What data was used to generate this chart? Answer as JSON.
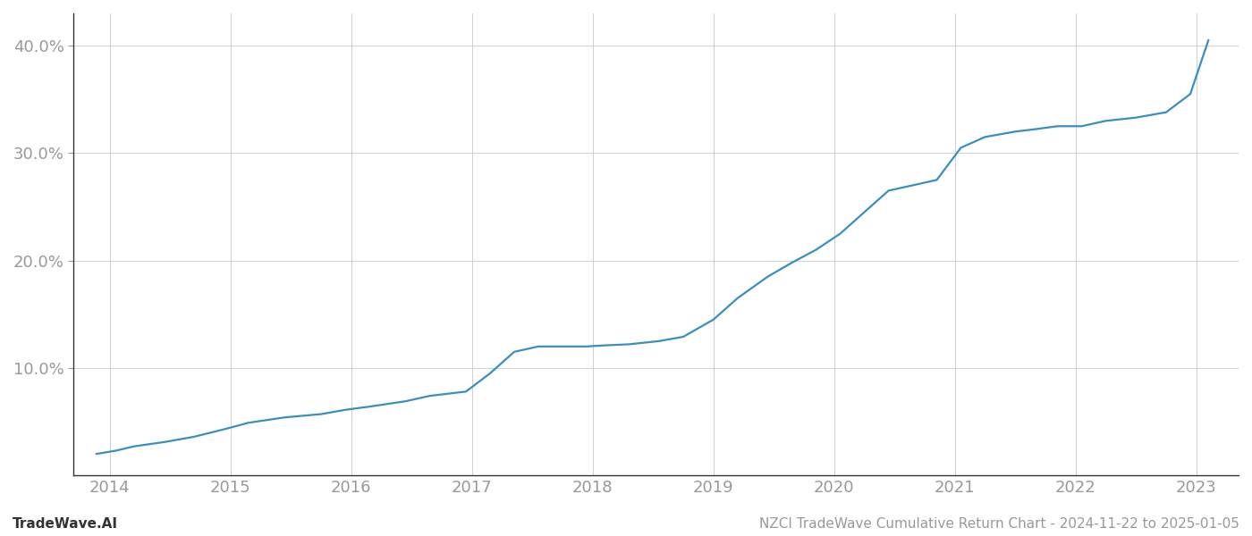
{
  "title": "NZCI TradeWave Cumulative Return Chart - 2024-11-22 to 2025-01-05",
  "watermark": "TradeWave.AI",
  "line_color": "#3a8fbf",
  "background_color": "#ffffff",
  "grid_color": "#d0d0d0",
  "x_values": [
    2013.89,
    2014.05,
    2014.2,
    2014.45,
    2014.7,
    2014.95,
    2015.15,
    2015.45,
    2015.75,
    2015.95,
    2016.15,
    2016.45,
    2016.65,
    2016.95,
    2017.15,
    2017.35,
    2017.55,
    2017.75,
    2017.95,
    2018.1,
    2018.3,
    2018.55,
    2018.75,
    2019.0,
    2019.2,
    2019.45,
    2019.65,
    2019.85,
    2020.05,
    2020.2,
    2020.45,
    2020.65,
    2020.85,
    2021.05,
    2021.25,
    2021.5,
    2021.65,
    2021.85,
    2022.05,
    2022.25,
    2022.5,
    2022.75,
    2022.95,
    2023.1
  ],
  "y_values": [
    2.0,
    2.3,
    2.7,
    3.1,
    3.6,
    4.3,
    4.9,
    5.4,
    5.7,
    6.1,
    6.4,
    6.9,
    7.4,
    7.8,
    9.5,
    11.5,
    12.0,
    12.0,
    12.0,
    12.1,
    12.2,
    12.5,
    12.9,
    14.5,
    16.5,
    18.5,
    19.8,
    21.0,
    22.5,
    24.0,
    26.5,
    27.0,
    27.5,
    30.5,
    31.5,
    32.0,
    32.2,
    32.5,
    32.5,
    33.0,
    33.3,
    33.8,
    35.5,
    40.5
  ],
  "xlim": [
    2013.7,
    2023.35
  ],
  "ylim": [
    0,
    43
  ],
  "yticks": [
    10.0,
    20.0,
    30.0,
    40.0
  ],
  "ytick_labels": [
    "10.0%",
    "20.0%",
    "30.0%",
    "40.0%"
  ],
  "xticks": [
    2014,
    2015,
    2016,
    2017,
    2018,
    2019,
    2020,
    2021,
    2022,
    2023
  ],
  "xtick_labels": [
    "2014",
    "2015",
    "2016",
    "2017",
    "2018",
    "2019",
    "2020",
    "2021",
    "2022",
    "2023"
  ],
  "line_width": 1.6,
  "font_size_ticks": 13,
  "font_size_footer": 11,
  "tick_color": "#999999",
  "spine_color": "#333333",
  "left_spine_color": "#333333"
}
